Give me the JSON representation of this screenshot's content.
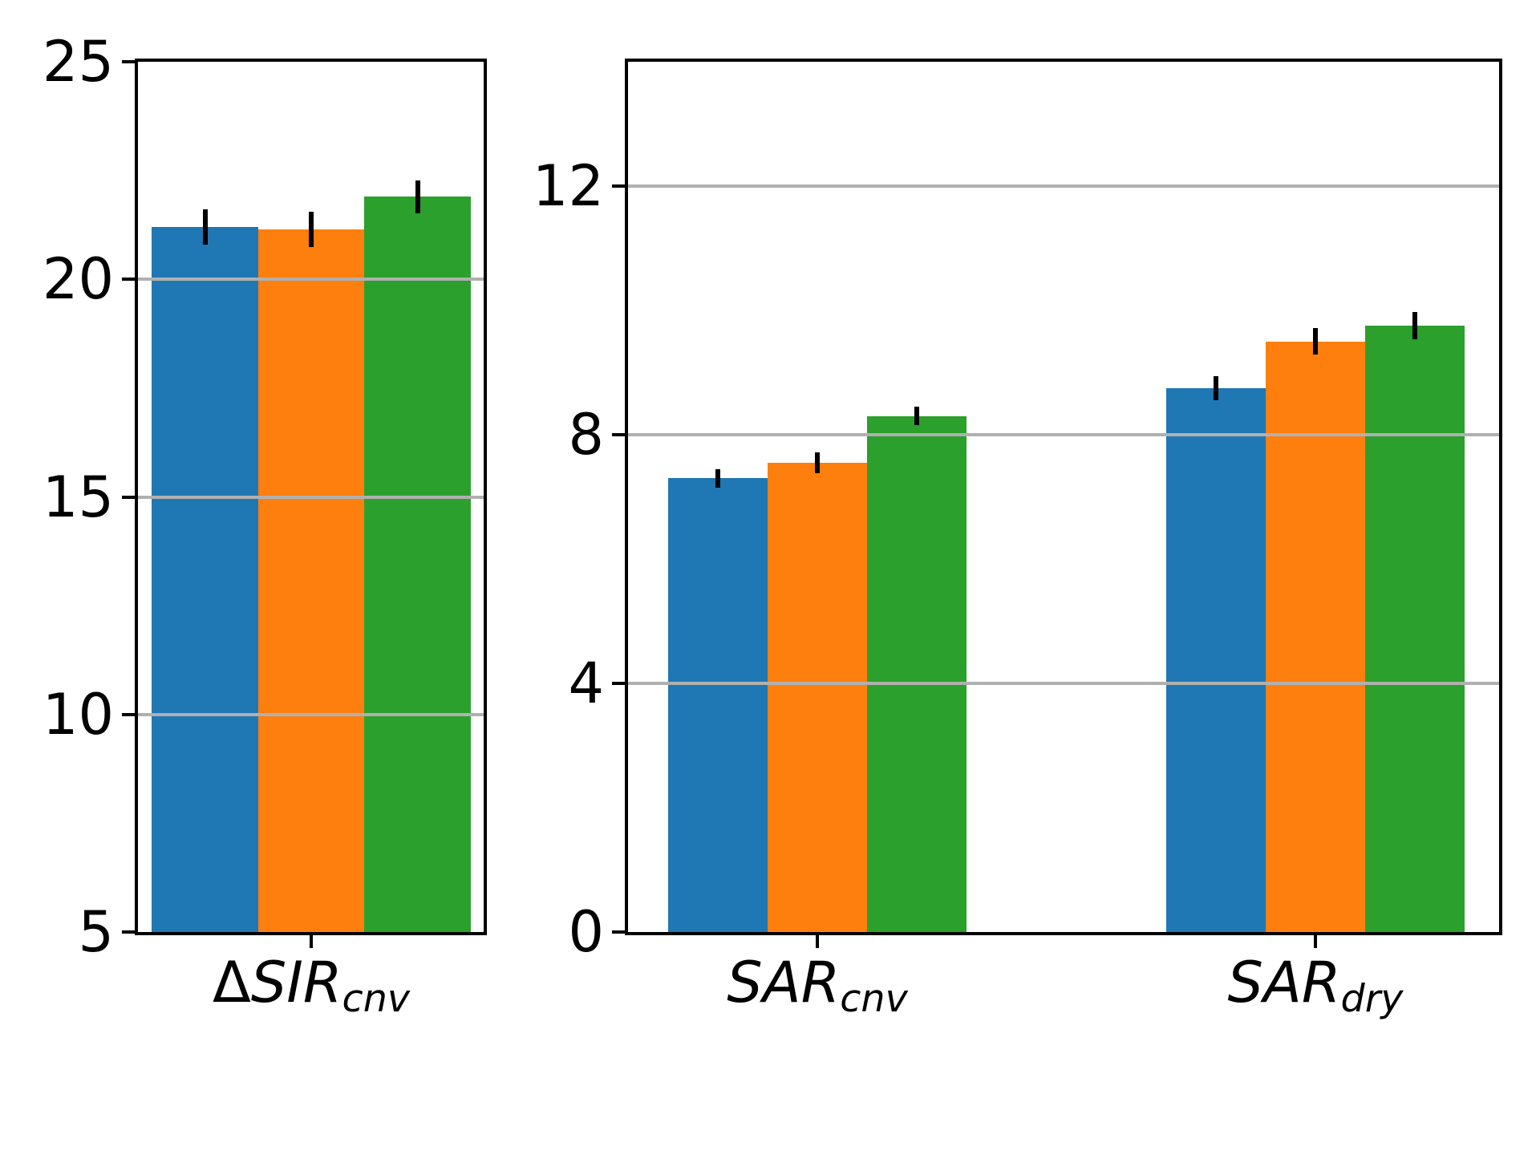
{
  "figure": {
    "background": "#ffffff",
    "text_color": "#000000",
    "spine_color": "#000000"
  },
  "chart_data": [
    {
      "type": "bar",
      "title": "",
      "xlabel": "",
      "ylabel": "",
      "categories": [
        {
          "prefix": "Δ",
          "main": "SIR",
          "sub": "cnv"
        }
      ],
      "series": [
        {
          "name": "series-blue",
          "color": "#1f77b4",
          "values": [
            21.2
          ],
          "errors": [
            0.4
          ]
        },
        {
          "name": "series-orange",
          "color": "#ff7f0e",
          "values": [
            21.15
          ],
          "errors": [
            0.4
          ]
        },
        {
          "name": "series-green",
          "color": "#2ca02c",
          "values": [
            21.9
          ],
          "errors": [
            0.38
          ]
        }
      ],
      "ylim": [
        5,
        25
      ],
      "yticks": [
        5,
        10,
        15,
        20,
        25
      ],
      "grid": true,
      "grid_color": "#b0b0b0",
      "legend": "none"
    },
    {
      "type": "bar",
      "title": "",
      "xlabel": "",
      "ylabel": "",
      "categories": [
        {
          "prefix": "",
          "main": "SAR",
          "sub": "cnv"
        },
        {
          "prefix": "",
          "main": "SAR",
          "sub": "dry"
        }
      ],
      "series": [
        {
          "name": "series-blue",
          "color": "#1f77b4",
          "values": [
            7.3,
            8.75
          ],
          "errors": [
            0.15,
            0.19
          ]
        },
        {
          "name": "series-orange",
          "color": "#ff7f0e",
          "values": [
            7.55,
            9.5
          ],
          "errors": [
            0.17,
            0.21
          ]
        },
        {
          "name": "series-green",
          "color": "#2ca02c",
          "values": [
            8.3,
            9.75
          ],
          "errors": [
            0.15,
            0.22
          ]
        }
      ],
      "ylim": [
        0,
        14
      ],
      "yticks": [
        0,
        4,
        8,
        12
      ],
      "grid": true,
      "grid_color": "#b0b0b0",
      "legend": "none"
    }
  ]
}
